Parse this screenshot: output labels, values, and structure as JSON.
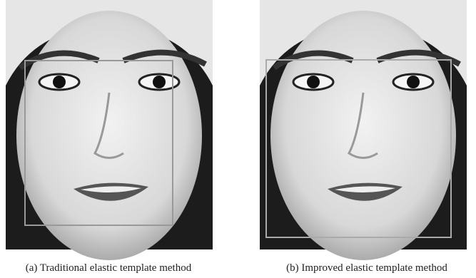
{
  "figure": {
    "panels": [
      {
        "caption": "(a) Traditional elastic template method"
      },
      {
        "caption": "(b) Improved elastic template method"
      }
    ]
  }
}
